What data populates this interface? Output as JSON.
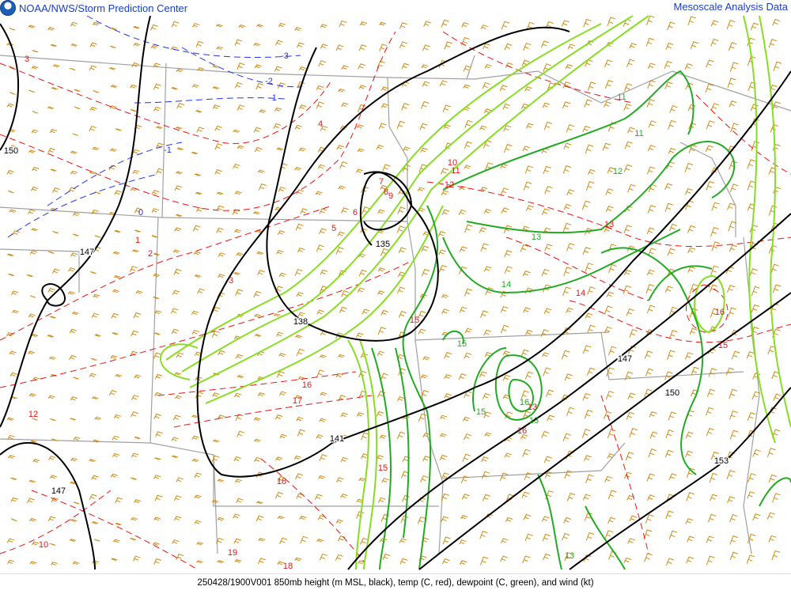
{
  "header": {
    "title": "NOAA/NWS/Storm Prediction Center",
    "product": "Mesoscale Analysis Data",
    "logo": "noaa-logo"
  },
  "footer": {
    "caption": "250428/1900V001 850mb height (m MSL, black), temp (C, red), dewpoint (C, green), and wind (kt)"
  },
  "colors": {
    "height": "#000000",
    "temp": "#ee1111",
    "temp_negative": "#2233ee",
    "dewpoint_dark": "#22aa22",
    "dewpoint_light": "#88dd22",
    "wind": "#d08a10",
    "borders": "#a0a0a0"
  },
  "contour_labels": {
    "height": [
      "150",
      "147",
      "147",
      "138",
      "135",
      "141",
      "147",
      "150",
      "153"
    ],
    "temp": [
      "-3",
      "-2",
      "-1",
      "-1",
      "0",
      "1",
      "2",
      "3",
      "3",
      "4",
      "5",
      "6",
      "7",
      "8",
      "9",
      "10",
      "10",
      "11",
      "12",
      "12",
      "13",
      "13",
      "14",
      "15",
      "15",
      "16",
      "16",
      "17",
      "18",
      "18",
      "19",
      "16",
      "15"
    ],
    "dewpoint": [
      "11",
      "11",
      "12",
      "13",
      "14",
      "15",
      "15",
      "16",
      "13",
      "13"
    ]
  }
}
